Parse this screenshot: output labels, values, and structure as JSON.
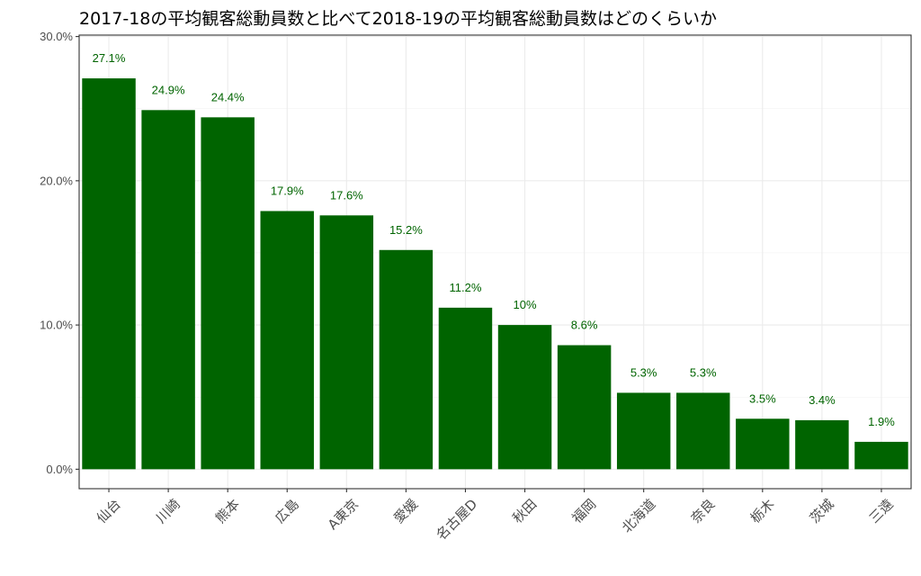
{
  "chart_data": {
    "type": "bar",
    "title": "2017-18の平均観客総動員数と比べて2018-19の平均観客総動員数はどのくらいか",
    "xlabel": "",
    "ylabel": "",
    "categories": [
      "仙台",
      "川崎",
      "熊本",
      "広島",
      "A東京",
      "愛媛",
      "名古屋D",
      "秋田",
      "福岡",
      "北海道",
      "奈良",
      "栃木",
      "茨城",
      "三遠"
    ],
    "values": [
      27.1,
      24.9,
      24.4,
      17.9,
      17.6,
      15.2,
      11.2,
      10.0,
      8.6,
      5.3,
      5.3,
      3.5,
      3.4,
      1.9
    ],
    "data_labels": [
      "27.1%",
      "24.9%",
      "24.4%",
      "17.9%",
      "17.6%",
      "15.2%",
      "11.2%",
      "10%",
      "8.6%",
      "5.3%",
      "5.3%",
      "3.5%",
      "3.4%",
      "1.9%"
    ],
    "y_ticks": [
      0,
      10,
      20,
      30
    ],
    "y_tick_labels": [
      "0.0%",
      "10.0%",
      "20.0%",
      "30.0%"
    ],
    "ylim": [
      -1.35,
      30.1
    ],
    "bar_color": "#006400",
    "label_color": "#006400",
    "grid": true,
    "legend": "none"
  }
}
